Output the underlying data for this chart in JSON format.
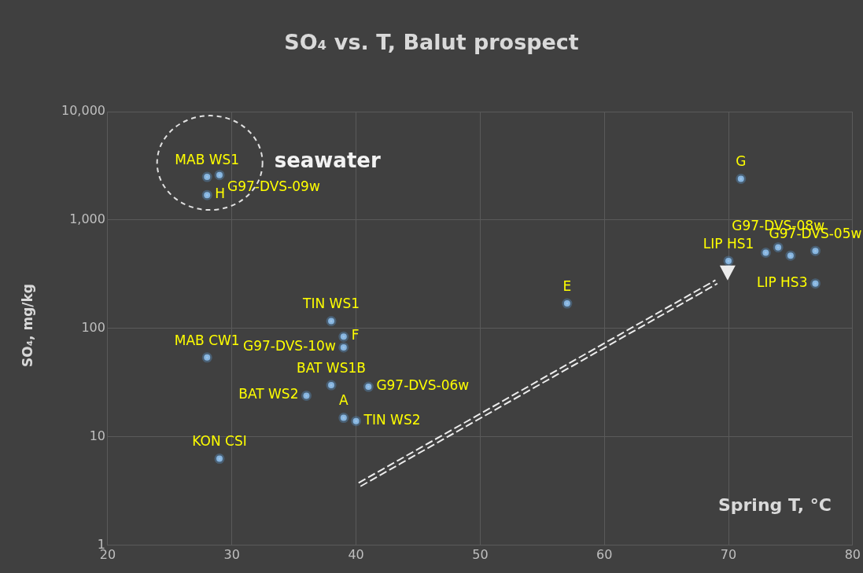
{
  "chart_data": {
    "type": "scatter",
    "title": "SO₄ vs. T, Balut prospect",
    "xlabel": "Spring T, °C",
    "ylabel": "SO₄, mg/kg",
    "log": "y",
    "xlim": [
      20,
      80
    ],
    "xticks": [
      20,
      30,
      40,
      50,
      60,
      70,
      80
    ],
    "ylim": [
      1,
      10000
    ],
    "yticks": [
      {
        "value": 1,
        "label": "1"
      },
      {
        "value": 10,
        "label": "10"
      },
      {
        "value": 100,
        "label": "100"
      },
      {
        "value": 1000,
        "label": "1,000"
      },
      {
        "value": 10000,
        "label": "10,000"
      }
    ],
    "grid": true,
    "legend": false,
    "marker": "circle",
    "series": [
      {
        "color": "#9dc3e6",
        "x": [
          28,
          29,
          28,
          28,
          29,
          38,
          39,
          39,
          38,
          41,
          36,
          39,
          40,
          57,
          71,
          70,
          73,
          74,
          75,
          77,
          77
        ],
        "values": [
          2500,
          2600,
          1700,
          54,
          6.3,
          117,
          84,
          67,
          30,
          29,
          24,
          15,
          14,
          170,
          2400,
          420,
          500,
          560,
          470,
          520,
          260
        ]
      }
    ],
    "annotations": [
      {
        "text": "MAB WS1",
        "x": 28,
        "y": 2500
      },
      {
        "text": "G97-DVS-09w",
        "x": 29,
        "y": 2600
      },
      {
        "text": "H",
        "x": 28,
        "y": 1700
      },
      {
        "text": "MAB CW1",
        "x": 28,
        "y": 54
      },
      {
        "text": "KON CSI",
        "x": 29,
        "y": 6.3
      },
      {
        "text": "TIN WS1",
        "x": 38,
        "y": 117
      },
      {
        "text": "F",
        "x": 39,
        "y": 84
      },
      {
        "text": "G97-DVS-10w",
        "x": 39,
        "y": 67
      },
      {
        "text": "BAT WS1B",
        "x": 38,
        "y": 30
      },
      {
        "text": "G97-DVS-06w",
        "x": 41,
        "y": 29
      },
      {
        "text": "BAT WS2",
        "x": 36,
        "y": 24
      },
      {
        "text": "A",
        "x": 39,
        "y": 15
      },
      {
        "text": "TIN WS2",
        "x": 40,
        "y": 14
      },
      {
        "text": "E",
        "x": 57,
        "y": 170
      },
      {
        "text": "G",
        "x": 71,
        "y": 2400
      },
      {
        "text": "LIP HS1",
        "x": 70,
        "y": 420
      },
      {
        "text": "G97-DVS-08w",
        "x": 74,
        "y": 560
      },
      {
        "text": "G97-DVS-05w",
        "x": 77,
        "y": 520
      },
      {
        "text": "LIP HS3",
        "x": 77,
        "y": 260
      },
      "seawater"
    ]
  }
}
